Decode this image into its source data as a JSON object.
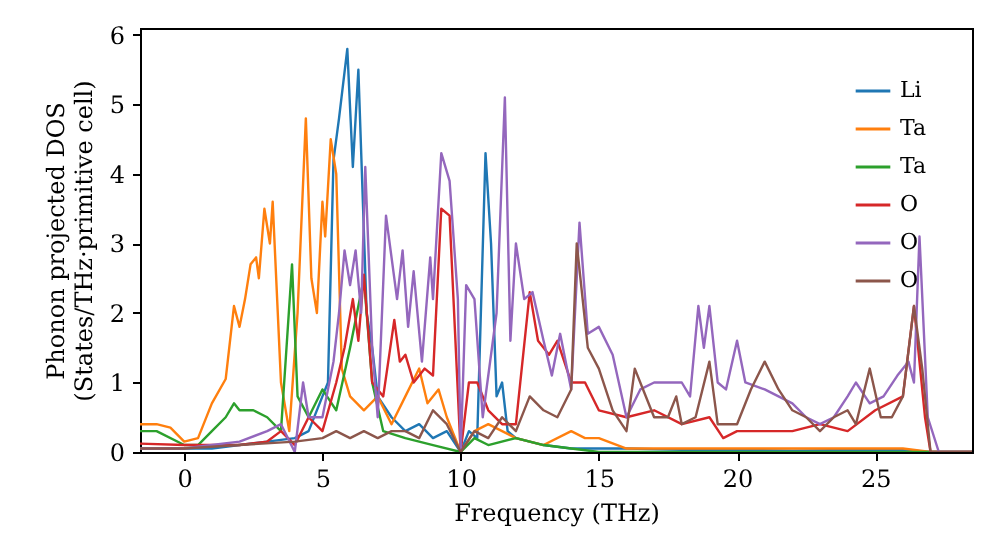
{
  "chart_data": {
    "type": "line",
    "xlabel": "Frequency (THz)",
    "ylabel": "Phonon projected DOS\n(States/THz·primitive cell)",
    "xlim": [
      -1.6,
      28.5
    ],
    "ylim": [
      0,
      6.1
    ],
    "xticks": [
      0,
      5,
      10,
      15,
      20,
      25
    ],
    "yticks": [
      0,
      1,
      2,
      3,
      4,
      5,
      6
    ],
    "grid": false,
    "legend": "top right",
    "line_style": "solid",
    "marker": "none",
    "series": [
      {
        "name": "Li",
        "color": "#1f77b4",
        "x": [
          -1.6,
          0,
          1,
          2,
          3,
          4,
          4.5,
          5,
          5.2,
          5.4,
          5.6,
          5.9,
          6.1,
          6.3,
          6.6,
          6.8,
          7,
          7.5,
          8,
          8.5,
          9,
          9.5,
          10,
          10.3,
          10.6,
          10.9,
          11.1,
          11.3,
          11.5,
          11.7,
          12,
          13,
          14,
          15,
          16,
          18,
          20,
          22,
          24,
          26,
          27,
          28.5
        ],
        "values": [
          0.05,
          0.05,
          0.05,
          0.1,
          0.15,
          0.2,
          0.3,
          0.8,
          1.0,
          4.2,
          4.8,
          5.8,
          4.1,
          5.5,
          2.0,
          1.5,
          0.8,
          0.5,
          0.3,
          0.4,
          0.2,
          0.3,
          0.0,
          0.3,
          0.2,
          4.3,
          3.0,
          0.8,
          1.0,
          0.3,
          0.2,
          0.1,
          0.05,
          0.05,
          0.05,
          0.03,
          0.03,
          0.02,
          0.03,
          0.03,
          0,
          0
        ]
      },
      {
        "name": "Ta",
        "color": "#ff7f0e",
        "x": [
          -1.6,
          -1,
          -0.5,
          0,
          0.5,
          1,
          1.5,
          1.8,
          2,
          2.2,
          2.4,
          2.6,
          2.7,
          2.9,
          3.1,
          3.2,
          3.5,
          3.8,
          4.1,
          4.4,
          4.6,
          4.8,
          5,
          5.1,
          5.3,
          5.5,
          5.7,
          6,
          6.5,
          7,
          7.5,
          8,
          8.5,
          8.8,
          9.2,
          9.5,
          10,
          10.5,
          11,
          11.5,
          12,
          13,
          14,
          14.5,
          15,
          16,
          18,
          20,
          22,
          24,
          26,
          27,
          28.5
        ],
        "values": [
          0.4,
          0.4,
          0.35,
          0.15,
          0.2,
          0.7,
          1.05,
          2.1,
          1.8,
          2.2,
          2.7,
          2.8,
          2.5,
          3.5,
          3.0,
          3.6,
          1.0,
          0.3,
          2.0,
          4.8,
          2.5,
          2.0,
          3.6,
          3.1,
          4.5,
          4.0,
          1.2,
          0.8,
          0.6,
          0.8,
          0.4,
          0.8,
          1.2,
          0.7,
          0.9,
          0.5,
          0,
          0.3,
          0.4,
          0.3,
          0.2,
          0.1,
          0.3,
          0.2,
          0.2,
          0.05,
          0.05,
          0.05,
          0.05,
          0.05,
          0.05,
          0,
          0
        ]
      },
      {
        "name": "Ta",
        "color": "#2ca02c",
        "x": [
          -1.6,
          -1,
          0,
          0.5,
          1,
          1.5,
          1.8,
          2,
          2.5,
          3,
          3.5,
          3.7,
          3.9,
          4.1,
          4.5,
          5,
          5.5,
          6,
          6.5,
          6.8,
          7.2,
          8,
          9,
          10,
          10.5,
          11,
          12,
          13,
          14,
          15,
          16,
          20,
          27,
          28.5
        ],
        "values": [
          0.3,
          0.3,
          0.1,
          0.1,
          0.3,
          0.5,
          0.7,
          0.6,
          0.6,
          0.5,
          0.3,
          1.5,
          2.7,
          0.8,
          0.5,
          0.9,
          0.6,
          1.5,
          2.5,
          1.0,
          0.3,
          0.2,
          0.1,
          0,
          0.2,
          0.1,
          0.2,
          0.1,
          0.05,
          0,
          0,
          0,
          0,
          0
        ]
      },
      {
        "name": "O",
        "color": "#d62728",
        "x": [
          -1.6,
          0,
          1,
          2,
          3,
          3.5,
          4,
          4.5,
          5,
          5.5,
          5.8,
          6.1,
          6.3,
          6.5,
          6.8,
          7.2,
          7.6,
          7.8,
          8,
          8.3,
          8.7,
          9,
          9.3,
          9.6,
          10,
          10.3,
          10.6,
          11,
          11.5,
          12,
          12.5,
          12.8,
          13.2,
          13.5,
          14,
          14.5,
          15,
          16,
          17,
          18,
          19,
          19.5,
          20,
          21,
          22,
          23,
          24,
          25,
          26,
          26.4,
          26.8,
          27,
          28.5
        ],
        "values": [
          0.12,
          0.1,
          0.1,
          0.1,
          0.15,
          0.3,
          0.1,
          0.5,
          0.3,
          1.0,
          1.5,
          2.2,
          1.6,
          2.55,
          1.0,
          0.8,
          1.9,
          1.3,
          1.4,
          1.0,
          1.2,
          1.1,
          3.5,
          3.4,
          0,
          1.0,
          1.0,
          0.6,
          0.4,
          0.4,
          2.3,
          1.6,
          1.4,
          1.6,
          1.0,
          1.0,
          0.6,
          0.5,
          0.6,
          0.4,
          0.5,
          0.2,
          0.3,
          0.3,
          0.3,
          0.4,
          0.3,
          0.6,
          0.8,
          2.1,
          0.5,
          0,
          0
        ]
      },
      {
        "name": "O",
        "color": "#9467bd",
        "x": [
          -1.6,
          0,
          1,
          2,
          3,
          3.5,
          4,
          4.3,
          4.5,
          5,
          5.4,
          5.6,
          5.8,
          6,
          6.2,
          6.4,
          6.55,
          6.8,
          7,
          7.3,
          7.7,
          7.9,
          8.1,
          8.3,
          8.6,
          8.9,
          9,
          9.3,
          9.6,
          9.9,
          10,
          10.2,
          10.5,
          10.8,
          11.3,
          11.6,
          11.8,
          12,
          12.3,
          12.6,
          13,
          13.3,
          13.6,
          14,
          14.3,
          14.6,
          15,
          15.5,
          16,
          16.5,
          17,
          17.5,
          18,
          18.3,
          18.6,
          18.8,
          19,
          19.3,
          19.6,
          20,
          20.3,
          21,
          21.5,
          22,
          22.5,
          23,
          23.5,
          24,
          24.3,
          24.8,
          25.3,
          25.8,
          26.2,
          26.4,
          26.6,
          26.9,
          27.3,
          28.5
        ],
        "values": [
          0.05,
          0.05,
          0.1,
          0.15,
          0.3,
          0.4,
          0,
          1.0,
          0.5,
          0.5,
          1.3,
          2.0,
          2.9,
          2.4,
          2.9,
          2.0,
          4.1,
          1.5,
          0.5,
          3.4,
          2.2,
          2.9,
          1.8,
          2.6,
          1.3,
          2.8,
          2.2,
          4.3,
          3.9,
          2.2,
          0,
          2.4,
          2.2,
          0.5,
          2.0,
          5.1,
          1.6,
          3.0,
          2.2,
          2.3,
          1.6,
          1.1,
          1.7,
          0.9,
          3.3,
          1.7,
          1.8,
          1.4,
          0.5,
          0.9,
          1.0,
          1.0,
          1.0,
          0.8,
          2.1,
          1.5,
          2.1,
          1.0,
          0.9,
          1.6,
          1.0,
          0.9,
          0.8,
          0.7,
          0.5,
          0.4,
          0.5,
          0.8,
          1.0,
          0.7,
          0.8,
          1.1,
          1.3,
          1.0,
          3.1,
          0.5,
          0,
          0
        ]
      },
      {
        "name": "O",
        "color": "#8c564b",
        "x": [
          -1.6,
          0,
          2,
          4,
          5,
          5.5,
          6,
          6.5,
          7,
          7.5,
          8,
          8.5,
          9,
          9.5,
          10,
          10.5,
          11,
          11.5,
          12,
          12.5,
          13,
          13.5,
          14,
          14.2,
          14.6,
          15,
          15.5,
          16,
          16.3,
          16.6,
          17,
          17.5,
          17.8,
          18,
          18.5,
          19,
          19.3,
          20,
          20.5,
          21,
          21.5,
          22,
          22.5,
          23,
          23.5,
          24,
          24.3,
          24.8,
          25.2,
          25.6,
          26,
          26.4,
          26.7,
          27,
          28.5
        ],
        "values": [
          0.05,
          0.05,
          0.1,
          0.15,
          0.2,
          0.3,
          0.2,
          0.3,
          0.2,
          0.3,
          0.3,
          0.2,
          0.6,
          0.4,
          0,
          0.3,
          0.2,
          0.5,
          0.3,
          0.8,
          0.6,
          0.5,
          0.9,
          3.0,
          1.5,
          1.2,
          0.6,
          0.3,
          1.2,
          0.9,
          0.5,
          0.5,
          0.8,
          0.4,
          0.5,
          1.3,
          0.4,
          0.4,
          0.9,
          1.3,
          0.9,
          0.6,
          0.5,
          0.3,
          0.5,
          0.6,
          0.4,
          1.2,
          0.5,
          0.5,
          0.8,
          2.1,
          1.2,
          0,
          0
        ]
      }
    ]
  }
}
